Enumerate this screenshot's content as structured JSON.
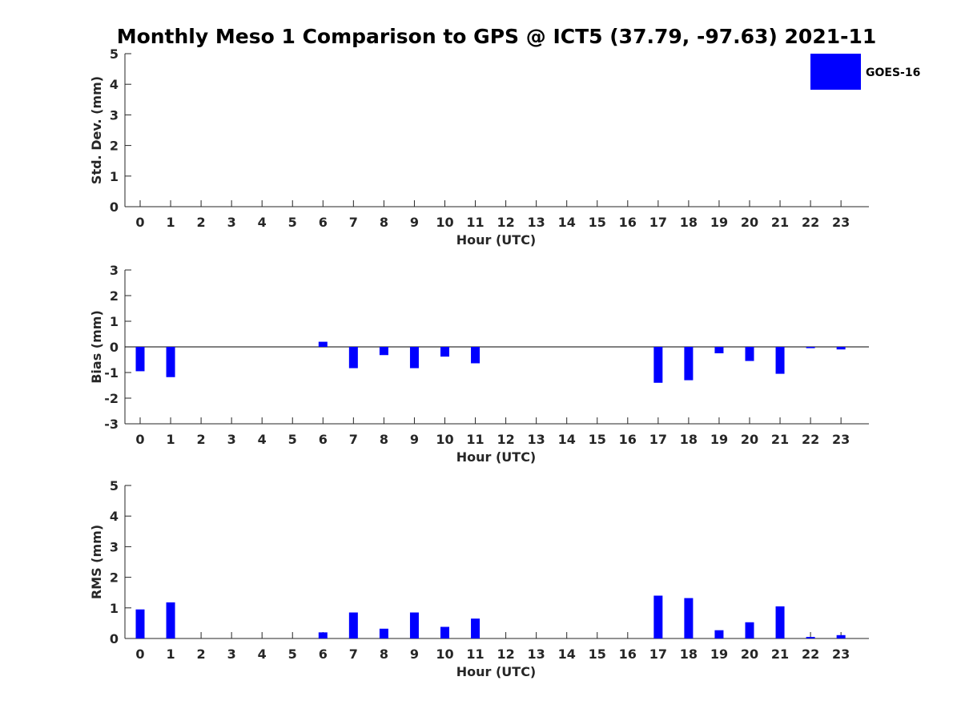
{
  "figure": {
    "title": "Monthly Meso 1 Comparison to GPS @ ICT5 (37.79, -97.63) 2021-11",
    "bar_color": "#0000ff",
    "legend": {
      "label": "GOES-16",
      "placement": "top-right"
    }
  },
  "chart_data": [
    {
      "type": "bar",
      "ylabel": "Std. Dev. (mm)",
      "xlabel": "Hour (UTC)",
      "x": [
        0,
        1,
        2,
        3,
        4,
        5,
        6,
        7,
        8,
        9,
        10,
        11,
        12,
        13,
        14,
        15,
        16,
        17,
        18,
        19,
        20,
        21,
        22,
        23
      ],
      "ylim": [
        0,
        5
      ],
      "yticks": [
        0,
        1,
        2,
        3,
        4,
        5
      ],
      "series": [
        {
          "name": "GOES-16",
          "values": [
            0,
            0,
            0,
            0,
            0,
            0,
            0,
            0,
            0,
            0,
            0,
            0,
            0,
            0,
            0,
            0,
            0,
            0,
            0,
            0,
            0,
            0,
            0,
            0
          ]
        }
      ]
    },
    {
      "type": "bar",
      "ylabel": "Bias (mm)",
      "xlabel": "Hour (UTC)",
      "x": [
        0,
        1,
        2,
        3,
        4,
        5,
        6,
        7,
        8,
        9,
        10,
        11,
        12,
        13,
        14,
        15,
        16,
        17,
        18,
        19,
        20,
        21,
        22,
        23
      ],
      "ylim": [
        -3,
        3
      ],
      "yticks": [
        -3,
        -2,
        -1,
        0,
        1,
        2,
        3
      ],
      "series": [
        {
          "name": "GOES-16",
          "values": [
            -0.95,
            -1.18,
            0,
            0,
            0,
            0,
            0.2,
            -0.83,
            -0.32,
            -0.83,
            -0.38,
            -0.64,
            0,
            0,
            0,
            0,
            0,
            -1.4,
            -1.3,
            -0.25,
            -0.55,
            -1.05,
            -0.05,
            -0.1
          ]
        }
      ]
    },
    {
      "type": "bar",
      "ylabel": "RMS (mm)",
      "xlabel": "Hour (UTC)",
      "x": [
        0,
        1,
        2,
        3,
        4,
        5,
        6,
        7,
        8,
        9,
        10,
        11,
        12,
        13,
        14,
        15,
        16,
        17,
        18,
        19,
        20,
        21,
        22,
        23
      ],
      "ylim": [
        0,
        5
      ],
      "yticks": [
        0,
        1,
        2,
        3,
        4,
        5
      ],
      "series": [
        {
          "name": "GOES-16",
          "values": [
            0.95,
            1.18,
            0,
            0,
            0,
            0,
            0.2,
            0.85,
            0.32,
            0.85,
            0.38,
            0.65,
            0,
            0,
            0,
            0,
            0,
            1.4,
            1.32,
            0.27,
            0.53,
            1.05,
            0.05,
            0.11
          ]
        }
      ]
    }
  ]
}
